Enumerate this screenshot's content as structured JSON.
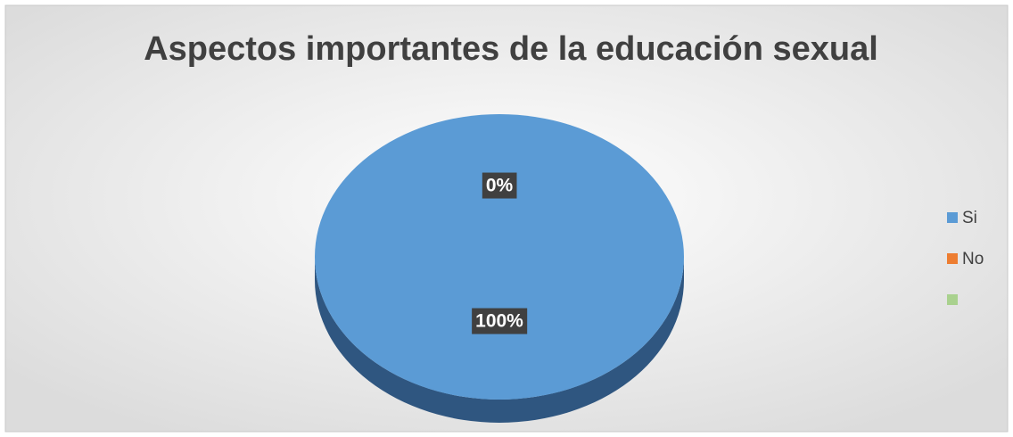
{
  "chart_data": {
    "type": "pie",
    "title": "Aspectos importantes de la educación sexual",
    "categories": [
      "Si",
      "No",
      null
    ],
    "values": [
      100,
      0,
      0
    ],
    "value_labels": [
      "100%",
      "0%",
      null
    ],
    "colors": [
      "#5b9bd5",
      "#ed7d31",
      "#a9d18e"
    ],
    "side_colors": [
      "#2f5680",
      "#b35a1f",
      "#7a9c63"
    ],
    "legend": "right"
  }
}
